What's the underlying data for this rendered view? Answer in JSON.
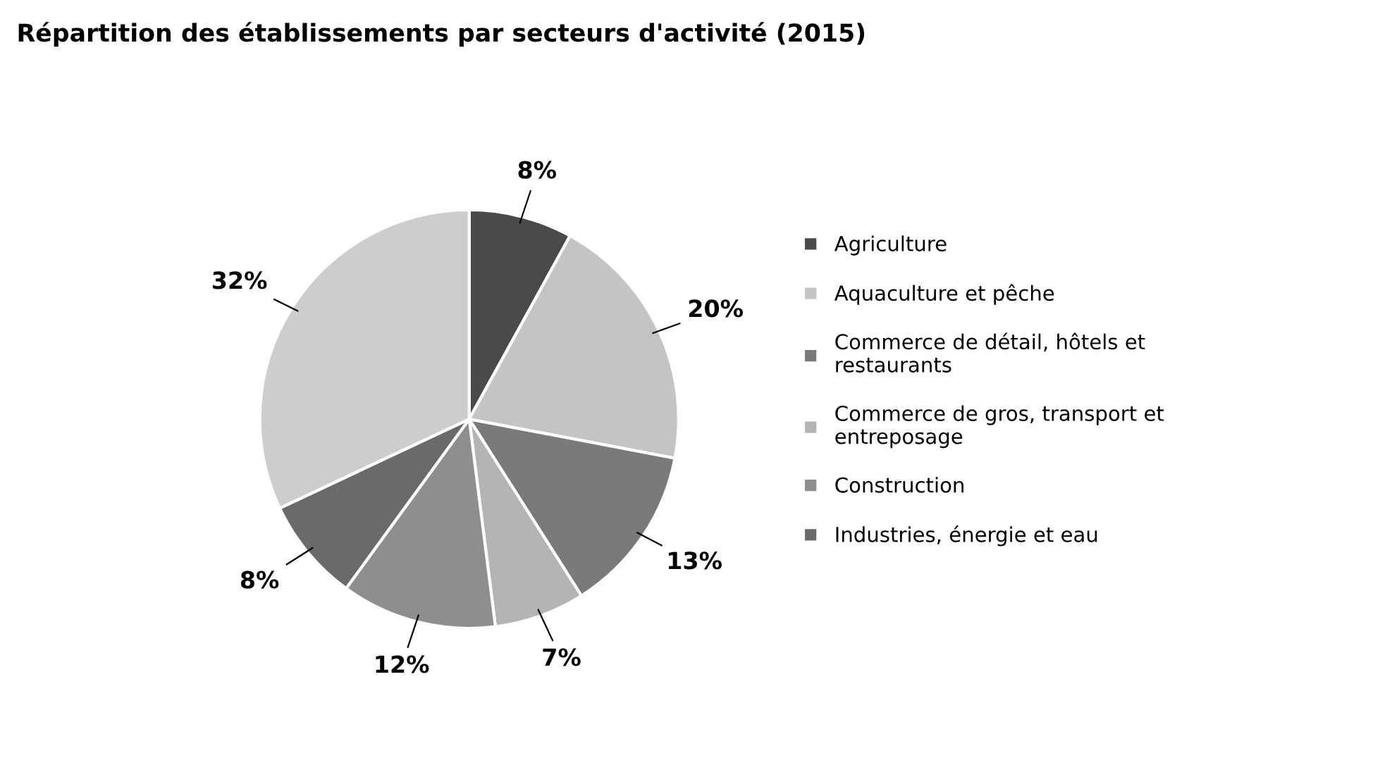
{
  "chart_data": {
    "type": "pie",
    "title": "Répartition des établissements par secteurs d'activité (2015)",
    "categories": [
      "Agriculture",
      "Aquaculture et pêche",
      "Commerce de détail, hôtels et restaurants",
      "Commerce de gros, transport et entreposage",
      "Construction",
      "Industries, énergie et eau",
      null
    ],
    "values": [
      8,
      20,
      13,
      7,
      12,
      8,
      32
    ],
    "colors": [
      "#4a4a4a",
      "#c4c4c4",
      "#7a7a7a",
      "#b4b4b4",
      "#8e8e8e",
      "#6a6a6a",
      "#cdcdcd"
    ],
    "value_labels": [
      "8%",
      "20%",
      "13%",
      "7%",
      "12%",
      "8%",
      "32%"
    ],
    "legend": "right"
  }
}
